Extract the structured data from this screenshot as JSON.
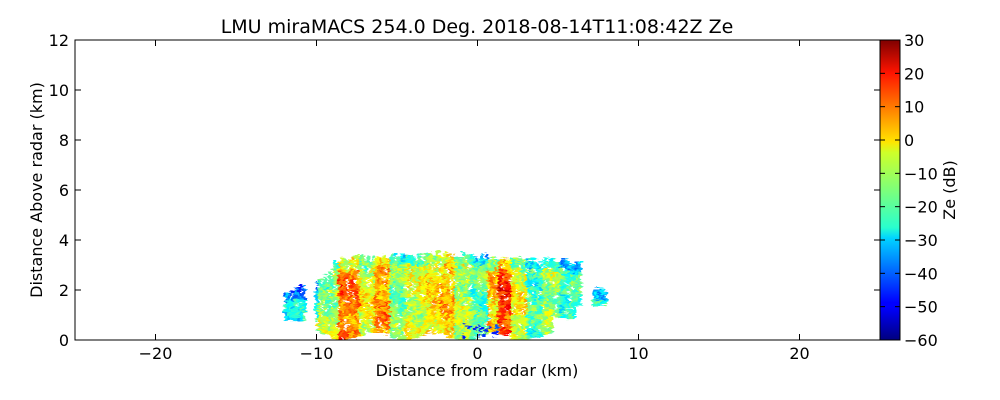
{
  "chart_data": {
    "type": "heatmap",
    "title": "LMU miraMACS 254.0 Deg. 2018-08-14T11:08:42Z  Ze",
    "xlabel": "Distance from radar (km)",
    "ylabel": "Distance Above radar  (km)",
    "xlim": [
      -25,
      25
    ],
    "ylim": [
      0,
      12
    ],
    "xticks": [
      -20,
      -10,
      0,
      10,
      20
    ],
    "xtick_labels": [
      "−20",
      "−10",
      "0",
      "10",
      "20"
    ],
    "yticks": [
      0,
      2,
      4,
      6,
      8,
      10,
      12
    ],
    "ytick_labels": [
      "0",
      "2",
      "4",
      "6",
      "8",
      "10",
      "12"
    ],
    "grid": false,
    "colorbar": {
      "label": "Ze (dB)",
      "colormap": "jet",
      "range": [
        -60,
        30
      ],
      "ticks": [
        -60,
        -50,
        -40,
        -30,
        -20,
        -10,
        0,
        10,
        20,
        30
      ],
      "tick_labels": [
        "−60",
        "−50",
        "−40",
        "−30",
        "−20",
        "−10",
        "0",
        "10",
        "20",
        "30"
      ]
    },
    "echo": {
      "x_extent": [
        -12,
        8
      ],
      "top_height_approx": 3.4,
      "cells": [
        {
          "x": -11.5,
          "ze": -28
        },
        {
          "x": -10.5,
          "ze": -25
        },
        {
          "x": -9.5,
          "ze": -12
        },
        {
          "x": -8,
          "ze": 8
        },
        {
          "x": -7,
          "ze": -5
        },
        {
          "x": -6,
          "ze": 5
        },
        {
          "x": -5,
          "ze": -15
        },
        {
          "x": -4,
          "ze": -8
        },
        {
          "x": -3,
          "ze": -3
        },
        {
          "x": -2,
          "ze": 2
        },
        {
          "x": -1,
          "ze": -10
        },
        {
          "x": 0,
          "ze": -18
        },
        {
          "x": 1,
          "ze": 0
        },
        {
          "x": 1.5,
          "ze": 14
        },
        {
          "x": 2.5,
          "ze": -5
        },
        {
          "x": 3.5,
          "ze": -20
        },
        {
          "x": 4.5,
          "ze": -12
        },
        {
          "x": 5.5,
          "ze": -22
        },
        {
          "x": 6,
          "ze": -20
        },
        {
          "x": 7.5,
          "ze": -25
        }
      ]
    }
  }
}
